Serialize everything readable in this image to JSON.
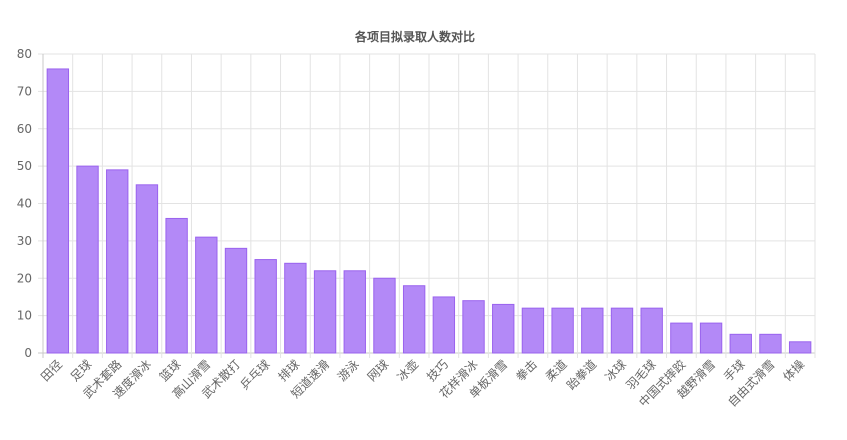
{
  "chart_data": {
    "type": "bar",
    "title": "各项目拟录取人数对比",
    "xlabel": "",
    "ylabel": "",
    "ylim": [
      0,
      80
    ],
    "yticks": [
      0,
      10,
      20,
      30,
      40,
      50,
      60,
      70,
      80
    ],
    "grid": true,
    "legend": "none",
    "bar_fill": "#b389f7",
    "bar_stroke": "#9a63ee",
    "categories": [
      "田径",
      "足球",
      "武术套路",
      "速度滑冰",
      "篮球",
      "高山滑雪",
      "武术散打",
      "乒乓球",
      "排球",
      "短道速滑",
      "游泳",
      "网球",
      "冰壶",
      "技巧",
      "花样滑冰",
      "单板滑雪",
      "拳击",
      "柔道",
      "跆拳道",
      "冰球",
      "羽毛球",
      "中国式摔跤",
      "越野滑雪",
      "手球",
      "自由式滑雪",
      "体操"
    ],
    "values": [
      76,
      50,
      49,
      45,
      36,
      31,
      28,
      25,
      24,
      22,
      22,
      20,
      18,
      15,
      14,
      13,
      12,
      12,
      12,
      12,
      12,
      8,
      8,
      5,
      5,
      3
    ]
  }
}
